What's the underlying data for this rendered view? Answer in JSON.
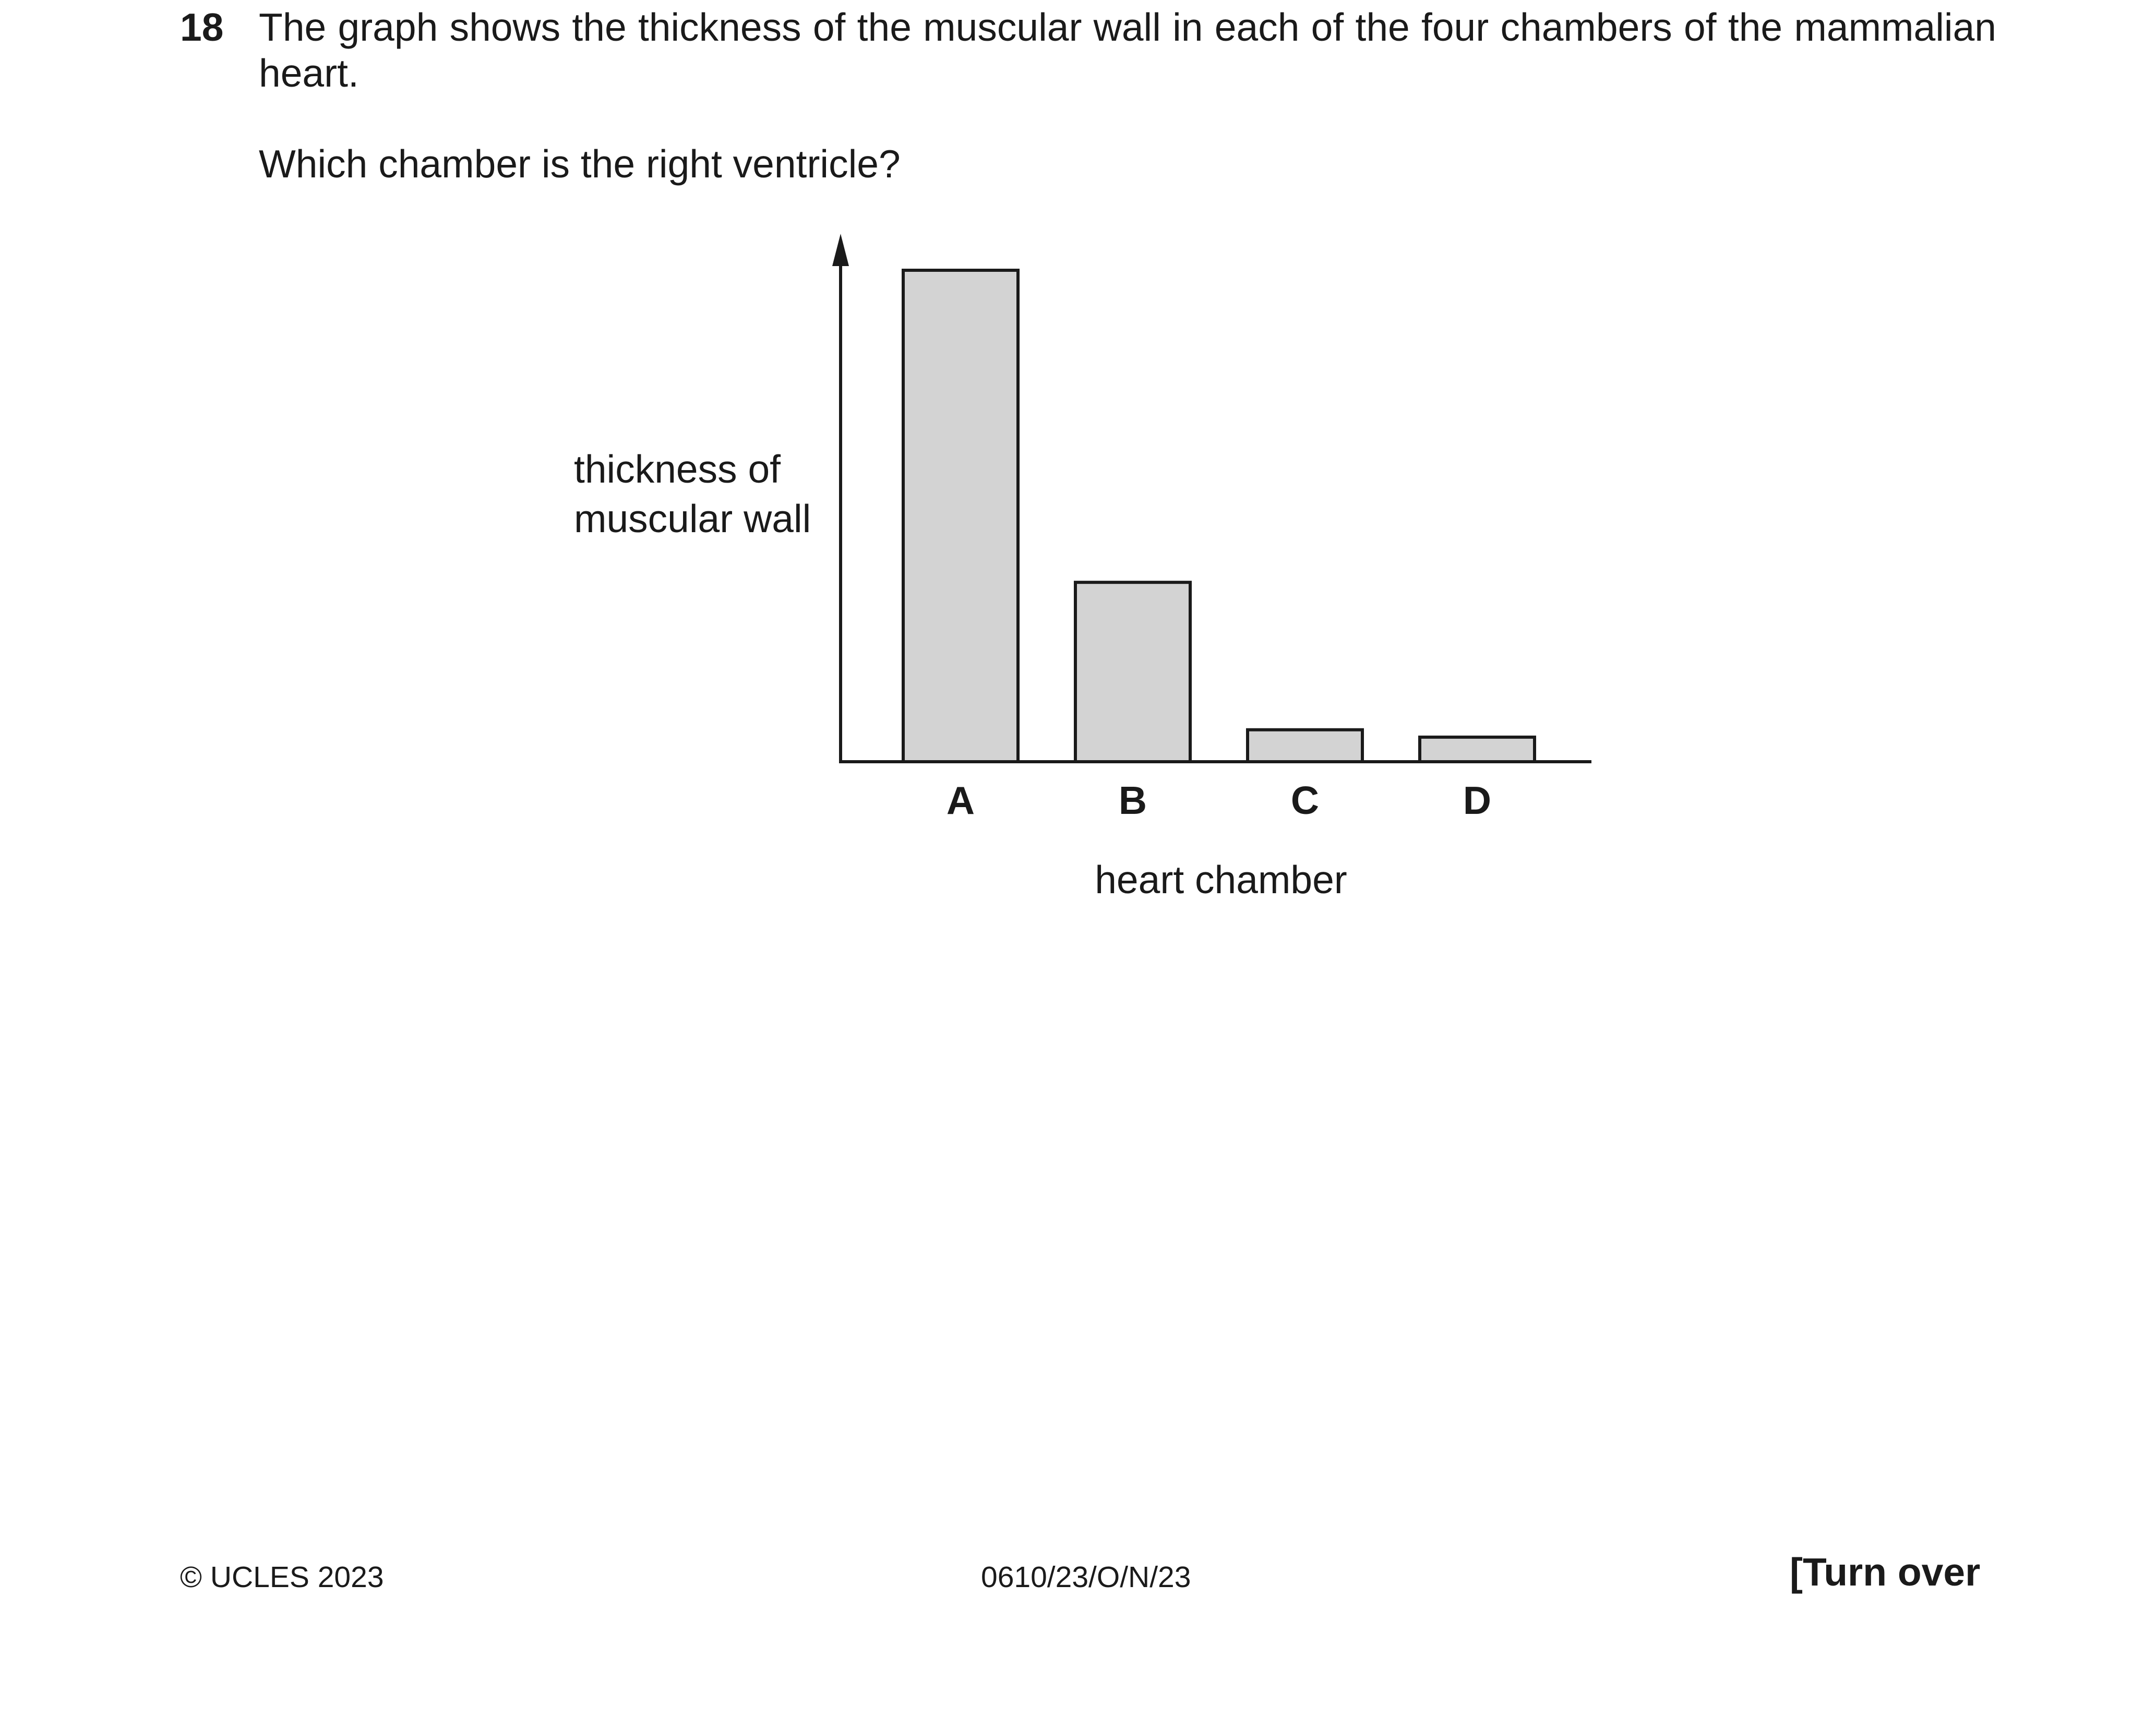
{
  "question": {
    "number": "18",
    "text": "The graph shows the thickness of the muscular wall in each of the four chambers of the mammalian heart.",
    "prompt": "Which chamber is the right ventricle?"
  },
  "chart_data": {
    "type": "bar",
    "categories": [
      "A",
      "B",
      "C",
      "D"
    ],
    "values": [
      100,
      36.5,
      6.5,
      5
    ],
    "ylabel_lines": [
      "thickness of",
      "muscular wall"
    ],
    "xlabel": "heart chamber",
    "ylim": [
      0,
      100
    ],
    "grid": false,
    "bar_fill": "#d3d3d3",
    "bar_stroke": "#1a1a1a"
  },
  "footer": {
    "copyright": "© UCLES 2023",
    "code": "0610/23/O/N/23",
    "turn_over": "[Turn over"
  }
}
